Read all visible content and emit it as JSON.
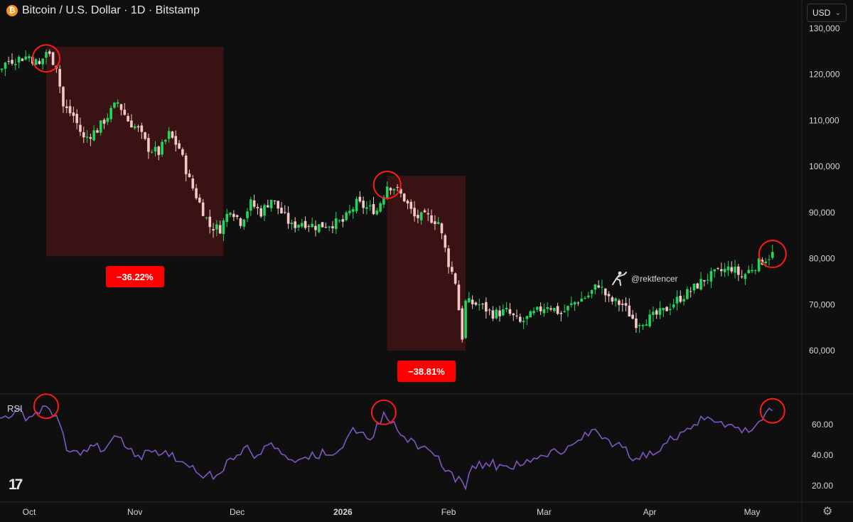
{
  "header": {
    "title": "Bitcoin / U.S. Dollar · 1D · Bitstamp",
    "coin_icon": "bitcoin-icon"
  },
  "currency": {
    "label": "USD",
    "icon": "chevron-down-icon"
  },
  "watermark": {
    "text": "@rektfencer",
    "icon": "fencer-icon"
  },
  "rsi": {
    "label": "RSI"
  },
  "logo": {
    "text": "17"
  },
  "colors": {
    "bg": "#0f0f0f",
    "up": "#22d55b",
    "down": "#f6c7c7",
    "rsi_line": "#7e57c2",
    "highlight": "#ff1a1a",
    "drawdown_box": "#3c1414"
  },
  "chart_data": [
    {
      "type": "candlestick",
      "title": "Bitcoin / U.S. Dollar · 1D · Bitstamp",
      "x_ticks": [
        "Oct",
        "Nov",
        "Dec",
        "2026",
        "Feb",
        "Mar",
        "Apr",
        "May"
      ],
      "y_ticks": [
        "130,000",
        "120,000",
        "110,000",
        "100,000",
        "90,000",
        "80,000",
        "70,000",
        "60,000"
      ],
      "ylim": [
        50000,
        131000
      ],
      "close_path": [
        [
          "2025-09-01",
          111000
        ],
        [
          "2025-09-05",
          113000
        ],
        [
          "2025-09-10",
          111500
        ],
        [
          "2025-09-15",
          115000
        ],
        [
          "2025-09-20",
          120000
        ],
        [
          "2025-09-25",
          123000
        ],
        [
          "2025-10-01",
          124000
        ],
        [
          "2025-10-04",
          122000
        ],
        [
          "2025-10-06",
          125000
        ],
        [
          "2025-10-09",
          122000
        ],
        [
          "2025-10-11",
          113000
        ],
        [
          "2025-10-14",
          111000
        ],
        [
          "2025-10-17",
          106000
        ],
        [
          "2025-10-21",
          108000
        ],
        [
          "2025-10-24",
          111000
        ],
        [
          "2025-10-27",
          114000
        ],
        [
          "2025-10-30",
          110000
        ],
        [
          "2025-11-02",
          108000
        ],
        [
          "2025-11-05",
          104000
        ],
        [
          "2025-11-08",
          103000
        ],
        [
          "2025-11-11",
          107000
        ],
        [
          "2025-11-14",
          104000
        ],
        [
          "2025-11-17",
          97000
        ],
        [
          "2025-11-20",
          92000
        ],
        [
          "2025-11-23",
          87000
        ],
        [
          "2025-11-26",
          86500
        ],
        [
          "2025-11-29",
          91000
        ],
        [
          "2025-12-02",
          88000
        ],
        [
          "2025-12-05",
          92000
        ],
        [
          "2025-12-08",
          90000
        ],
        [
          "2025-12-11",
          93000
        ],
        [
          "2025-12-14",
          90000
        ],
        [
          "2025-12-17",
          87000
        ],
        [
          "2025-12-20",
          88000
        ],
        [
          "2025-12-24",
          87000
        ],
        [
          "2025-12-28",
          87500
        ],
        [
          "2026-01-01",
          88000
        ],
        [
          "2026-01-05",
          92000
        ],
        [
          "2026-01-08",
          91000
        ],
        [
          "2026-01-11",
          90500
        ],
        [
          "2026-01-14",
          96000
        ],
        [
          "2026-01-16",
          95500
        ],
        [
          "2026-01-19",
          93000
        ],
        [
          "2026-01-22",
          89000
        ],
        [
          "2026-01-26",
          89000
        ],
        [
          "2026-01-29",
          88000
        ],
        [
          "2026-02-01",
          79000
        ],
        [
          "2026-02-03",
          75000
        ],
        [
          "2026-02-05",
          63000
        ],
        [
          "2026-02-06",
          70500
        ],
        [
          "2026-02-10",
          70000
        ],
        [
          "2026-02-14",
          68000
        ],
        [
          "2026-02-18",
          68500
        ],
        [
          "2026-02-22",
          66000
        ],
        [
          "2026-02-26",
          68000
        ],
        [
          "2026-03-02",
          70000
        ],
        [
          "2026-03-06",
          68000
        ],
        [
          "2026-03-10",
          70500
        ],
        [
          "2026-03-14",
          72000
        ],
        [
          "2026-03-17",
          74500
        ],
        [
          "2026-03-20",
          71000
        ],
        [
          "2026-03-24",
          70000
        ],
        [
          "2026-03-28",
          66000
        ],
        [
          "2026-04-01",
          67000
        ],
        [
          "2026-04-05",
          68500
        ],
        [
          "2026-04-09",
          71000
        ],
        [
          "2026-04-13",
          73000
        ],
        [
          "2026-04-17",
          75500
        ],
        [
          "2026-04-21",
          77000
        ],
        [
          "2026-04-25",
          78000
        ],
        [
          "2026-04-28",
          76000
        ],
        [
          "2026-05-01",
          78000
        ],
        [
          "2026-05-04",
          79500
        ],
        [
          "2026-05-07",
          81000
        ]
      ],
      "drawdowns": [
        {
          "label": "−36.22%",
          "value": -36.22,
          "from": "2025-10-06",
          "to": "2025-11-27",
          "high": 126000,
          "low": 80500
        },
        {
          "label": "−38.81%",
          "value": -38.81,
          "from": "2026-01-14",
          "to": "2026-02-06",
          "high": 98000,
          "low": 60000
        }
      ],
      "highlights": [
        {
          "date": "2025-10-06",
          "price": 123500
        },
        {
          "date": "2026-01-14",
          "price": 96000
        },
        {
          "date": "2026-05-07",
          "price": 81000
        }
      ]
    },
    {
      "type": "line",
      "name": "RSI",
      "y_ticks": [
        "60.00",
        "40.00",
        "20.00"
      ],
      "ylim": [
        10,
        80
      ],
      "points": [
        [
          "2025-09-01",
          45
        ],
        [
          "2025-09-06",
          55
        ],
        [
          "2025-09-11",
          42
        ],
        [
          "2025-09-16",
          50
        ],
        [
          "2025-09-21",
          62
        ],
        [
          "2025-09-27",
          69
        ],
        [
          "2025-10-01",
          65
        ],
        [
          "2025-10-06",
          72
        ],
        [
          "2025-10-09",
          66
        ],
        [
          "2025-10-12",
          43
        ],
        [
          "2025-10-16",
          40
        ],
        [
          "2025-10-20",
          46
        ],
        [
          "2025-10-23",
          43
        ],
        [
          "2025-10-27",
          52
        ],
        [
          "2025-10-30",
          44
        ],
        [
          "2025-11-02",
          40
        ],
        [
          "2025-11-06",
          42
        ],
        [
          "2025-11-10",
          43
        ],
        [
          "2025-11-13",
          36
        ],
        [
          "2025-11-17",
          32
        ],
        [
          "2025-11-21",
          25
        ],
        [
          "2025-11-25",
          27
        ],
        [
          "2025-11-29",
          38
        ],
        [
          "2025-12-03",
          45
        ],
        [
          "2025-12-07",
          40
        ],
        [
          "2025-12-11",
          48
        ],
        [
          "2025-12-15",
          40
        ],
        [
          "2025-12-19",
          37
        ],
        [
          "2025-12-23",
          42
        ],
        [
          "2025-12-27",
          40
        ],
        [
          "2026-01-01",
          45
        ],
        [
          "2026-01-04",
          58
        ],
        [
          "2026-01-07",
          55
        ],
        [
          "2026-01-10",
          52
        ],
        [
          "2026-01-13",
          68
        ],
        [
          "2026-01-16",
          62
        ],
        [
          "2026-01-19",
          52
        ],
        [
          "2026-01-23",
          44
        ],
        [
          "2026-01-27",
          42
        ],
        [
          "2026-02-01",
          30
        ],
        [
          "2026-02-06",
          18
        ],
        [
          "2026-02-08",
          33
        ],
        [
          "2026-02-12",
          35
        ],
        [
          "2026-02-17",
          33
        ],
        [
          "2026-02-22",
          33
        ],
        [
          "2026-02-26",
          38
        ],
        [
          "2026-03-03",
          43
        ],
        [
          "2026-03-07",
          42
        ],
        [
          "2026-03-12",
          50
        ],
        [
          "2026-03-16",
          57
        ],
        [
          "2026-03-20",
          50
        ],
        [
          "2026-03-24",
          45
        ],
        [
          "2026-03-28",
          38
        ],
        [
          "2026-04-02",
          40
        ],
        [
          "2026-04-06",
          48
        ],
        [
          "2026-04-10",
          55
        ],
        [
          "2026-04-14",
          60
        ],
        [
          "2026-04-18",
          65
        ],
        [
          "2026-04-22",
          62
        ],
        [
          "2026-04-26",
          58
        ],
        [
          "2026-04-30",
          55
        ],
        [
          "2026-05-03",
          62
        ],
        [
          "2026-05-07",
          69
        ]
      ],
      "highlights": [
        {
          "date": "2025-10-06",
          "value": 72
        },
        {
          "date": "2026-01-13",
          "value": 68
        },
        {
          "date": "2026-05-07",
          "value": 69
        }
      ]
    }
  ]
}
